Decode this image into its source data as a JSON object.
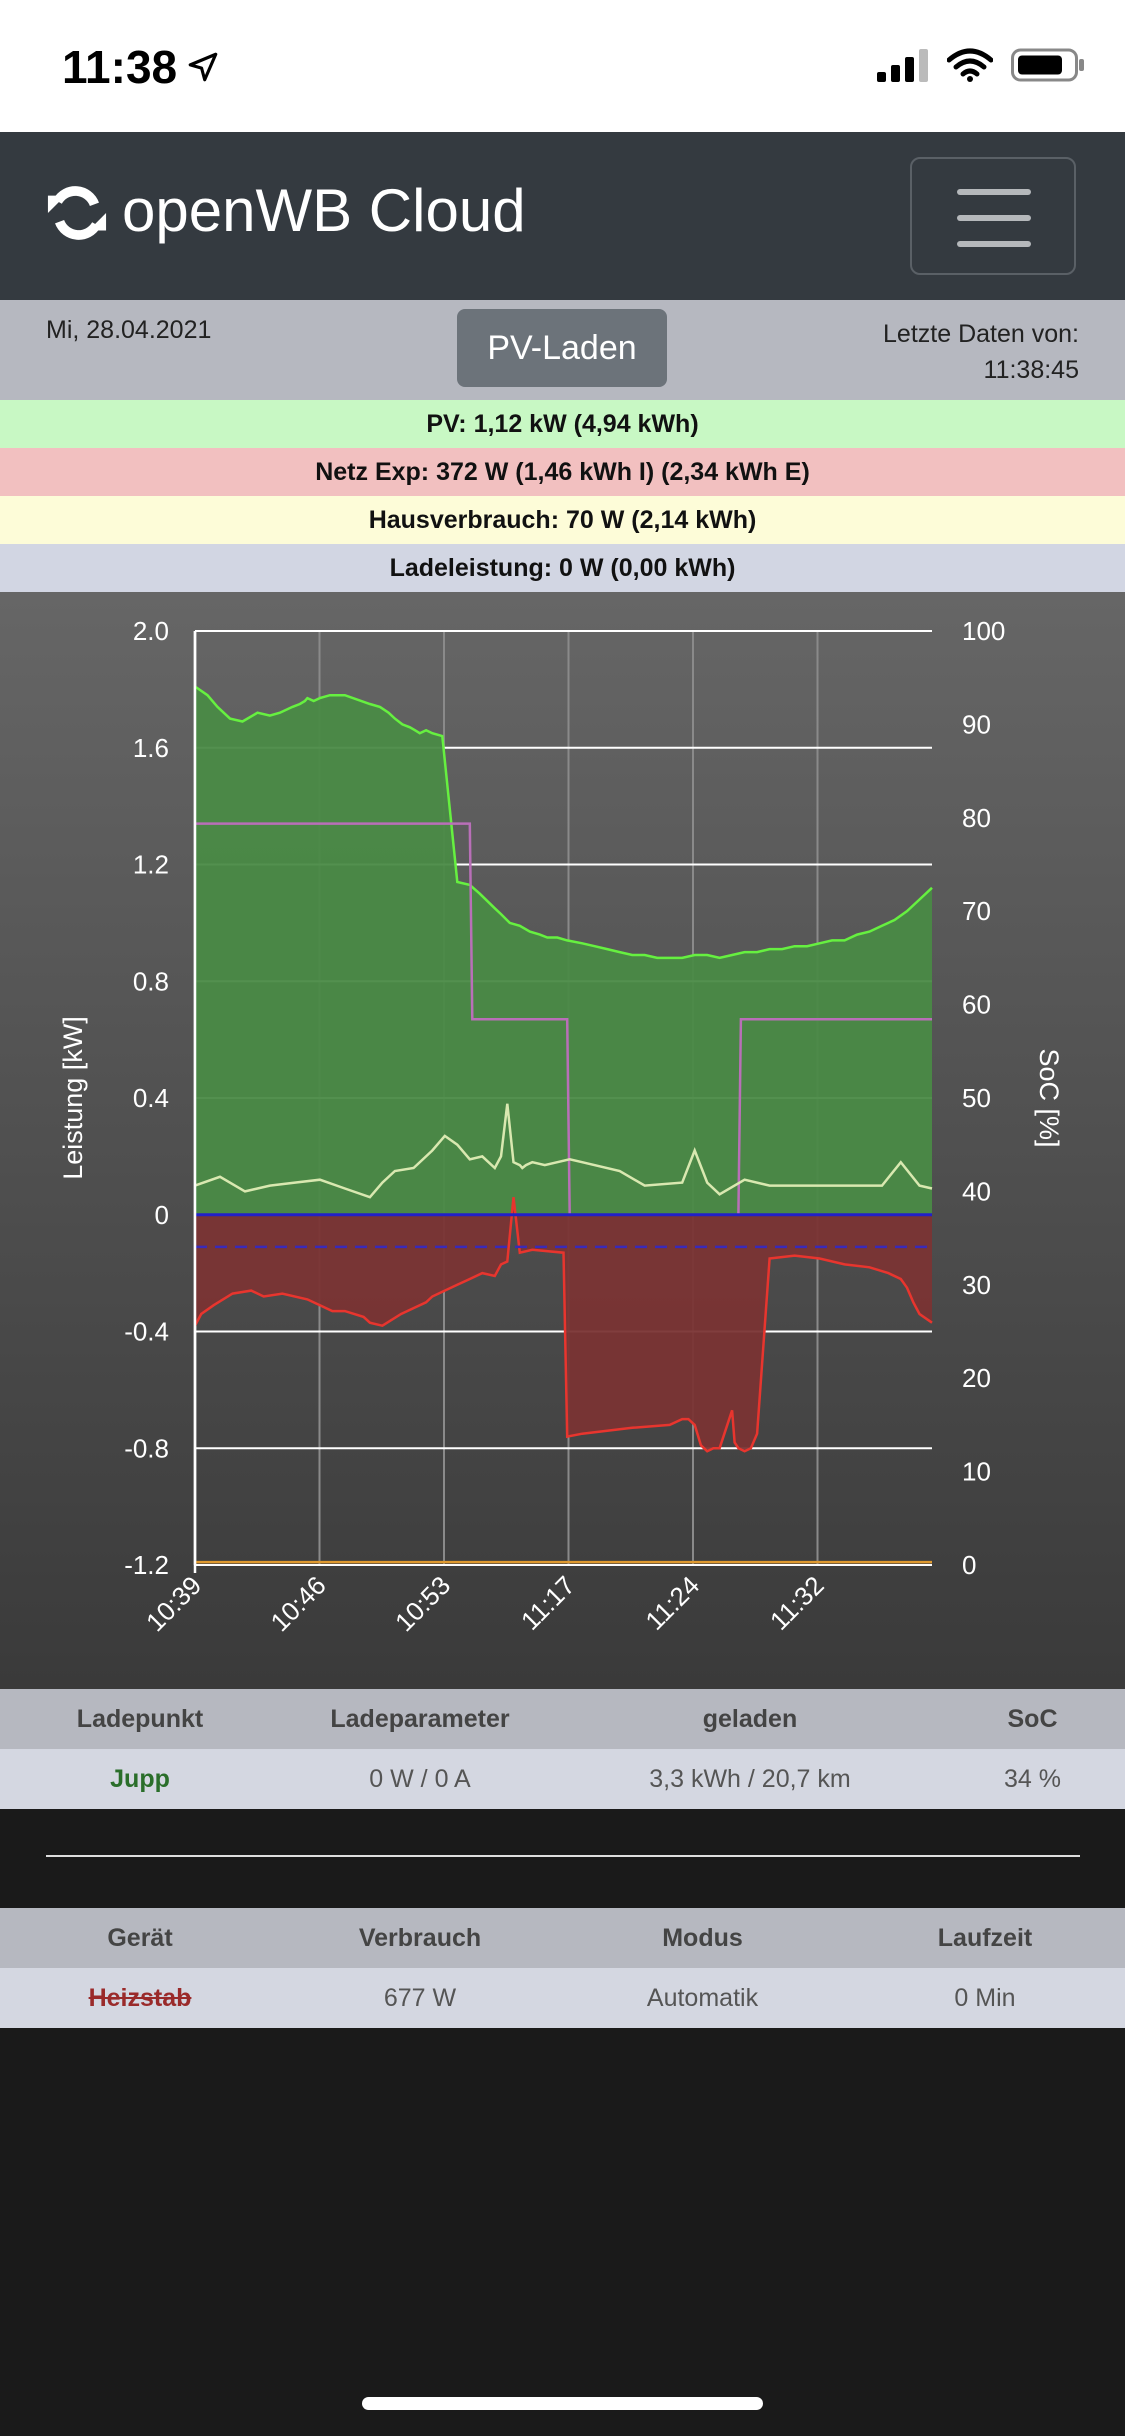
{
  "status_bar": {
    "time": "11:38"
  },
  "navbar": {
    "brand": "openWB Cloud"
  },
  "header": {
    "date": "Mi, 28.04.2021",
    "mode_button": "PV-Laden",
    "last_data_label": "Letzte Daten von:",
    "last_data_time": "11:38:45"
  },
  "summary": {
    "pv": "PV: 1,12 kW (4,94 kWh)",
    "grid": "Netz Exp: 372 W (1,46 kWh I) (2,34 kWh E)",
    "house": "Hausverbrauch: 70 W (2,14 kWh)",
    "charge": "Ladeleistung: 0 W (0,00 kWh)"
  },
  "colors": {
    "pv": "#a4ec9c",
    "grid": "#e35b50",
    "house": "#d9e8b0",
    "soc": "#b96fb8",
    "charge": "#2b2fb8"
  },
  "chart_data": {
    "type": "area",
    "xlabel": "",
    "ylabel": "Leistung [kW]",
    "ylabel_right": "SoC [%]",
    "ylim": [
      -1.2,
      2.0
    ],
    "ylim_right": [
      0,
      100
    ],
    "yticks": [
      "2.0",
      "1.6",
      "1.2",
      "0.8",
      "0.4",
      "0",
      "-0.4",
      "-0.8",
      "-1.2"
    ],
    "yticks_right": [
      "100",
      "90",
      "80",
      "70",
      "60",
      "50",
      "40",
      "30",
      "20",
      "10",
      "0"
    ],
    "xticks": [
      "10:39",
      "10:46",
      "10:53",
      "11:17",
      "11:24",
      "11:32"
    ],
    "grid": true,
    "series": [
      {
        "x": [
          0,
          10,
          18,
          28,
          38,
          50,
          60,
          68,
          78,
          84,
          88,
          90,
          95,
          100,
          108,
          120,
          140,
          148,
          155,
          160,
          166,
          172,
          176,
          180,
          185,
          190,
          198,
          210,
          220,
          228,
          240,
          245,
          252,
          260,
          268,
          276,
          282,
          290,
          298,
          310,
          320,
          330,
          340,
          350,
          360,
          370,
          380,
          390,
          400,
          410,
          420,
          430,
          440,
          450,
          460,
          470,
          480,
          490,
          500,
          510,
          520,
          530,
          540,
          550,
          560,
          570,
          580,
          590
        ],
        "values": [
          1.81,
          1.78,
          1.74,
          1.7,
          1.69,
          1.72,
          1.71,
          1.72,
          1.74,
          1.75,
          1.76,
          1.77,
          1.76,
          1.77,
          1.78,
          1.78,
          1.75,
          1.74,
          1.72,
          1.7,
          1.68,
          1.67,
          1.66,
          1.65,
          1.66,
          1.65,
          1.64,
          1.14,
          1.13,
          1.1,
          1.05,
          1.03,
          1.0,
          0.99,
          0.97,
          0.96,
          0.95,
          0.95,
          0.94,
          0.93,
          0.92,
          0.91,
          0.9,
          0.89,
          0.89,
          0.88,
          0.88,
          0.88,
          0.89,
          0.89,
          0.88,
          0.89,
          0.9,
          0.9,
          0.91,
          0.91,
          0.92,
          0.92,
          0.93,
          0.94,
          0.94,
          0.96,
          0.97,
          0.99,
          1.01,
          1.04,
          1.08,
          1.12
        ]
      },
      {
        "x": [
          0,
          20,
          40,
          60,
          80,
          100,
          120,
          140,
          150,
          160,
          175,
          190,
          200,
          210,
          220,
          230,
          240,
          245,
          250,
          255,
          260,
          262,
          265,
          270,
          280,
          290,
          300,
          310,
          340,
          360,
          390,
          400,
          410,
          420,
          440,
          460,
          480,
          500,
          520,
          550,
          565,
          580,
          590
        ],
        "values": [
          0.1,
          0.13,
          0.08,
          0.1,
          0.11,
          0.12,
          0.09,
          0.06,
          0.11,
          0.15,
          0.16,
          0.22,
          0.27,
          0.24,
          0.19,
          0.2,
          0.16,
          0.2,
          0.38,
          0.18,
          0.17,
          0.16,
          0.17,
          0.18,
          0.17,
          0.18,
          0.19,
          0.18,
          0.15,
          0.1,
          0.11,
          0.22,
          0.11,
          0.07,
          0.12,
          0.1,
          0.1,
          0.1,
          0.1,
          0.1,
          0.18,
          0.1,
          0.09
        ]
      },
      {
        "x": [
          0,
          5,
          15,
          30,
          45,
          55,
          70,
          90,
          100,
          110,
          120,
          135,
          140,
          150,
          165,
          175,
          185,
          190,
          200,
          210,
          215,
          220,
          230,
          240,
          245,
          250,
          255,
          260,
          270,
          295,
          298,
          310,
          330,
          350,
          380,
          390,
          395,
          400,
          405,
          410,
          415,
          420,
          430,
          432,
          435,
          440,
          445,
          450,
          460,
          480,
          500,
          520,
          540,
          555,
          565,
          570,
          575,
          580,
          590
        ],
        "values": [
          -0.38,
          -0.34,
          -0.31,
          -0.27,
          -0.26,
          -0.28,
          -0.27,
          -0.29,
          -0.31,
          -0.33,
          -0.33,
          -0.35,
          -0.37,
          -0.38,
          -0.34,
          -0.32,
          -0.3,
          -0.28,
          -0.26,
          -0.24,
          -0.23,
          -0.22,
          -0.2,
          -0.21,
          -0.17,
          -0.16,
          0.06,
          -0.13,
          -0.12,
          -0.13,
          -0.76,
          -0.75,
          -0.74,
          -0.73,
          -0.72,
          -0.7,
          -0.7,
          -0.72,
          -0.79,
          -0.81,
          -0.8,
          -0.8,
          -0.67,
          -0.78,
          -0.8,
          -0.81,
          -0.8,
          -0.75,
          -0.15,
          -0.14,
          -0.15,
          -0.17,
          -0.18,
          -0.2,
          -0.22,
          -0.25,
          -0.3,
          -0.34,
          -0.37
        ]
      },
      {
        "x": [
          0,
          220,
          222,
          298,
          300,
          435,
          437,
          590
        ],
        "values": [
          1.34,
          1.34,
          0.67,
          0.67,
          0.0,
          0.0,
          0.67,
          0.67
        ]
      },
      {
        "x": [
          0,
          590
        ],
        "values": [
          0.0,
          0.0
        ]
      },
      {
        "x": [
          0,
          590
        ],
        "values": [
          -0.11,
          -0.11
        ]
      },
      {
        "x": [
          0,
          590
        ],
        "values": [
          -1.19,
          -1.19
        ]
      }
    ]
  },
  "charge_table": {
    "headers": [
      "Ladepunkt",
      "Ladeparameter",
      "geladen",
      "SoC"
    ],
    "rows": [
      {
        "name": "Jupp",
        "params": "0 W / 0 A",
        "charged": "3,3 kWh / 20,7 km",
        "soc": "34 %"
      }
    ]
  },
  "device_table": {
    "headers": [
      "Gerät",
      "Verbrauch",
      "Modus",
      "Laufzeit"
    ],
    "rows": [
      {
        "name": "Heizstab",
        "usage": "677 W",
        "mode": "Automatik",
        "runtime": "0 Min"
      }
    ]
  }
}
